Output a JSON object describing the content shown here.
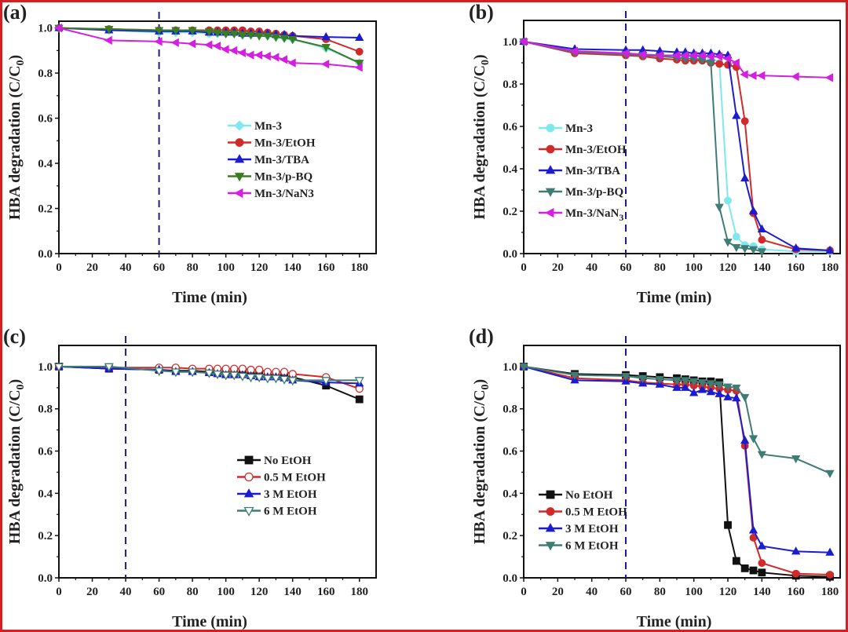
{
  "figure": {
    "border_color": "#d42020"
  },
  "chart_data": [
    {
      "panel": "(a)",
      "type": "line",
      "xlabel": "Time (min)",
      "ylabel": "HBA degradation (C/C0)",
      "ylabel_parts": [
        "HBA degradation (C/C",
        "0",
        ")"
      ],
      "xlim": [
        0,
        190
      ],
      "ylim": [
        0,
        1.03
      ],
      "xticks": [
        0,
        20,
        40,
        60,
        80,
        100,
        120,
        140,
        160,
        180
      ],
      "xtick_labels": [
        "0",
        "20",
        "40",
        "60",
        "80",
        "100",
        "120",
        "140",
        "160",
        "180"
      ],
      "yticks": [
        0.0,
        0.2,
        0.4,
        0.6,
        0.8,
        1.0
      ],
      "ytick_labels": [
        "0.0",
        "0.2",
        "0.4",
        "0.6",
        "0.8",
        "1.0"
      ],
      "vline_x": 60,
      "legend_position": "center-right",
      "series": [
        {
          "name": "Mn-3",
          "label": "Mn-3",
          "color": "#7fe8ee",
          "marker": "diamond",
          "x": [
            0,
            30,
            60,
            70,
            80,
            90,
            95,
            100,
            105,
            110,
            115,
            120,
            125,
            130,
            135,
            140,
            160,
            180
          ],
          "y": [
            1.0,
            0.99,
            0.98,
            0.98,
            0.98,
            0.975,
            0.975,
            0.975,
            0.975,
            0.97,
            0.97,
            0.97,
            0.965,
            0.96,
            0.955,
            0.95,
            0.91,
            0.845
          ]
        },
        {
          "name": "Mn-3/EtOH",
          "label": "Mn-3/EtOH",
          "color": "#d12a2a",
          "marker": "circle",
          "x": [
            0,
            30,
            60,
            70,
            80,
            90,
            95,
            100,
            105,
            110,
            115,
            120,
            125,
            130,
            135,
            140,
            160,
            180
          ],
          "y": [
            1.0,
            0.995,
            0.99,
            0.99,
            0.99,
            0.99,
            0.99,
            0.99,
            0.99,
            0.99,
            0.985,
            0.985,
            0.98,
            0.975,
            0.97,
            0.965,
            0.95,
            0.895
          ]
        },
        {
          "name": "Mn-3/TBA",
          "label": "Mn-3/TBA",
          "color": "#1c1ccf",
          "marker": "triangle-up",
          "x": [
            0,
            30,
            60,
            70,
            80,
            90,
            95,
            100,
            105,
            110,
            115,
            120,
            125,
            130,
            135,
            140,
            160,
            180
          ],
          "y": [
            1.0,
            0.99,
            0.985,
            0.985,
            0.985,
            0.98,
            0.98,
            0.98,
            0.98,
            0.975,
            0.975,
            0.975,
            0.975,
            0.97,
            0.97,
            0.965,
            0.96,
            0.957
          ]
        },
        {
          "name": "Mn-3/p-BQ",
          "label": "Mn-3/p-BQ",
          "color": "#3b7d23",
          "marker": "triangle-down",
          "x": [
            0,
            30,
            60,
            70,
            80,
            90,
            95,
            100,
            105,
            110,
            115,
            120,
            125,
            130,
            135,
            140,
            160,
            180
          ],
          "y": [
            1.0,
            0.995,
            0.99,
            0.99,
            0.99,
            0.985,
            0.98,
            0.975,
            0.975,
            0.97,
            0.97,
            0.965,
            0.965,
            0.96,
            0.955,
            0.95,
            0.915,
            0.845
          ]
        },
        {
          "name": "Mn-3/NaN3",
          "label": "Mn-3/NaN3",
          "color": "#d51fe0",
          "marker": "triangle-left",
          "x": [
            0,
            30,
            60,
            70,
            80,
            90,
            95,
            100,
            105,
            110,
            115,
            120,
            125,
            130,
            135,
            140,
            160,
            180
          ],
          "y": [
            1.0,
            0.945,
            0.94,
            0.935,
            0.93,
            0.925,
            0.92,
            0.905,
            0.9,
            0.89,
            0.88,
            0.88,
            0.875,
            0.87,
            0.86,
            0.845,
            0.84,
            0.825
          ]
        }
      ]
    },
    {
      "panel": "(b)",
      "type": "line",
      "xlabel": "Time (min)",
      "ylabel": "HBA degradation (C/C0)",
      "ylabel_parts": [
        "HBA degradation (C/C",
        "0",
        ")"
      ],
      "xlim": [
        0,
        186
      ],
      "ylim": [
        0,
        1.1
      ],
      "xticks": [
        0,
        20,
        40,
        60,
        80,
        100,
        120,
        140,
        160,
        180
      ],
      "xtick_labels": [
        "0",
        "20",
        "40",
        "60",
        "80",
        "100",
        "120",
        "140",
        "160",
        "180"
      ],
      "yticks": [
        0.0,
        0.2,
        0.4,
        0.6,
        0.8,
        1.0
      ],
      "ytick_labels": [
        "0.0",
        "0.2",
        "0.4",
        "0.6",
        "0.8",
        "1.0"
      ],
      "vline_x": 60,
      "legend_position": "center-left",
      "series": [
        {
          "name": "Mn-3",
          "label": "Mn-3",
          "label_sub": "",
          "color": "#7fe8ee",
          "marker": "circle",
          "x": [
            0,
            30,
            60,
            70,
            80,
            90,
            95,
            100,
            105,
            110,
            115,
            120,
            125,
            130,
            135,
            140,
            160,
            180
          ],
          "y": [
            1.0,
            0.955,
            0.945,
            0.94,
            0.935,
            0.93,
            0.93,
            0.93,
            0.93,
            0.925,
            0.9,
            0.25,
            0.08,
            0.04,
            0.035,
            0.02,
            0.01,
            0.01
          ]
        },
        {
          "name": "Mn-3/EtOH",
          "label": "Mn-3/EtOH",
          "label_sub": "",
          "color": "#d12a2a",
          "marker": "circle",
          "x": [
            0,
            30,
            60,
            70,
            80,
            90,
            95,
            100,
            105,
            110,
            115,
            120,
            125,
            130,
            135,
            140,
            160,
            180
          ],
          "y": [
            1.0,
            0.945,
            0.935,
            0.93,
            0.92,
            0.915,
            0.91,
            0.91,
            0.91,
            0.9,
            0.895,
            0.89,
            0.88,
            0.625,
            0.19,
            0.065,
            0.02,
            0.015
          ]
        },
        {
          "name": "Mn-3/TBA",
          "label": "Mn-3/TBA",
          "label_sub": "",
          "color": "#1c1ccf",
          "marker": "triangle-up",
          "x": [
            0,
            30,
            60,
            70,
            80,
            90,
            95,
            100,
            105,
            110,
            115,
            120,
            125,
            130,
            135,
            140,
            160,
            180
          ],
          "y": [
            1.0,
            0.965,
            0.96,
            0.96,
            0.955,
            0.95,
            0.95,
            0.945,
            0.945,
            0.945,
            0.94,
            0.935,
            0.65,
            0.355,
            0.2,
            0.115,
            0.025,
            0.015
          ]
        },
        {
          "name": "Mn-3/p-BQ",
          "label": "Mn-3/p-BQ",
          "label_sub": "",
          "color": "#3f7c74",
          "marker": "triangle-down",
          "x": [
            0,
            30,
            60,
            70,
            80,
            90,
            95,
            100,
            105,
            110,
            115,
            120,
            125,
            130,
            135,
            140
          ],
          "y": [
            1.0,
            0.95,
            0.94,
            0.935,
            0.93,
            0.925,
            0.92,
            0.92,
            0.915,
            0.9,
            0.22,
            0.055,
            0.03,
            0.025,
            0.02,
            0.01
          ]
        },
        {
          "name": "Mn-3/NaN3",
          "label": "Mn-3/NaN",
          "label_sub": "3",
          "color": "#d51fe0",
          "marker": "triangle-left",
          "x": [
            0,
            30,
            60,
            70,
            80,
            90,
            95,
            100,
            105,
            110,
            115,
            120,
            125,
            130,
            135,
            140,
            160,
            180
          ],
          "y": [
            1.0,
            0.955,
            0.945,
            0.94,
            0.935,
            0.935,
            0.935,
            0.935,
            0.935,
            0.93,
            0.93,
            0.92,
            0.9,
            0.845,
            0.84,
            0.84,
            0.835,
            0.83
          ]
        }
      ]
    },
    {
      "panel": "(c)",
      "type": "line",
      "xlabel": "Time (min)",
      "ylabel": "HBA degradation (C/C0)",
      "ylabel_parts": [
        "HBA degradation (C/C",
        "0",
        ")"
      ],
      "xlim": [
        0,
        190
      ],
      "ylim": [
        0,
        1.1
      ],
      "xticks": [
        0,
        20,
        40,
        60,
        80,
        100,
        120,
        140,
        160,
        180
      ],
      "xtick_labels": [
        "0",
        "20",
        "40",
        "60",
        "80",
        "100",
        "120",
        "140",
        "160",
        "180"
      ],
      "yticks": [
        0.0,
        0.2,
        0.4,
        0.6,
        0.8,
        1.0
      ],
      "ytick_labels": [
        "0.0",
        "0.2",
        "0.4",
        "0.6",
        "0.8",
        "1.0"
      ],
      "vline_x": 40,
      "legend_position": "center-right",
      "series": [
        {
          "name": "No EtOH",
          "label": "No EtOH",
          "color": "#111111",
          "marker": "square",
          "fill": "solid",
          "x": [
            0,
            30,
            60,
            70,
            80,
            90,
            95,
            100,
            105,
            110,
            115,
            120,
            125,
            130,
            135,
            140,
            160,
            180
          ],
          "y": [
            1.0,
            0.99,
            0.985,
            0.98,
            0.98,
            0.975,
            0.975,
            0.97,
            0.97,
            0.97,
            0.965,
            0.965,
            0.96,
            0.96,
            0.955,
            0.95,
            0.91,
            0.845
          ]
        },
        {
          "name": "0.5 M EtOH",
          "label": "0.5 M EtOH",
          "color": "#d12a2a",
          "marker": "circle",
          "fill": "open",
          "x": [
            0,
            30,
            60,
            70,
            80,
            90,
            95,
            100,
            105,
            110,
            115,
            120,
            125,
            130,
            135,
            140,
            160,
            180
          ],
          "y": [
            1.0,
            0.995,
            0.995,
            0.995,
            0.99,
            0.99,
            0.99,
            0.99,
            0.99,
            0.99,
            0.985,
            0.985,
            0.975,
            0.975,
            0.975,
            0.965,
            0.95,
            0.895
          ]
        },
        {
          "name": "3 M EtOH",
          "label": "3 M EtOH",
          "color": "#1c1ccf",
          "marker": "triangle-up",
          "fill": "solid",
          "x": [
            0,
            30,
            60,
            70,
            80,
            90,
            95,
            100,
            105,
            110,
            115,
            120,
            125,
            130,
            135,
            140,
            160,
            180
          ],
          "y": [
            1.0,
            0.99,
            0.985,
            0.975,
            0.975,
            0.97,
            0.965,
            0.96,
            0.96,
            0.96,
            0.955,
            0.95,
            0.95,
            0.95,
            0.945,
            0.935,
            0.925,
            0.92
          ]
        },
        {
          "name": "6 M EtOH",
          "label": "6 M EtOH",
          "color": "#3f7c74",
          "marker": "triangle-down",
          "fill": "open",
          "x": [
            0,
            30,
            60,
            70,
            80,
            90,
            95,
            100,
            105,
            110,
            115,
            120,
            125,
            130,
            135,
            140,
            160,
            180
          ],
          "y": [
            1.0,
            1.0,
            0.98,
            0.975,
            0.975,
            0.97,
            0.965,
            0.96,
            0.96,
            0.955,
            0.95,
            0.95,
            0.945,
            0.945,
            0.94,
            0.935,
            0.935,
            0.935
          ]
        }
      ]
    },
    {
      "panel": "(d)",
      "type": "line",
      "xlabel": "Time (min)",
      "ylabel": "HBA degradation (C/C0)",
      "ylabel_parts": [
        "HBA degradation (C/C",
        "0",
        ")"
      ],
      "xlim": [
        0,
        186
      ],
      "ylim": [
        0,
        1.1
      ],
      "xticks": [
        0,
        20,
        40,
        60,
        80,
        100,
        120,
        140,
        160,
        180
      ],
      "xtick_labels": [
        "0",
        "20",
        "40",
        "60",
        "80",
        "100",
        "120",
        "140",
        "160",
        "180"
      ],
      "yticks": [
        0.0,
        0.2,
        0.4,
        0.6,
        0.8,
        1.0
      ],
      "ytick_labels": [
        "0.0",
        "0.2",
        "0.4",
        "0.6",
        "0.8",
        "1.0"
      ],
      "vline_x": 60,
      "legend_position": "center-left",
      "series": [
        {
          "name": "No EtOH",
          "label": "No EtOH",
          "color": "#111111",
          "marker": "square",
          "fill": "solid",
          "x": [
            0,
            30,
            60,
            70,
            80,
            90,
            95,
            100,
            105,
            110,
            115,
            120,
            125,
            130,
            135,
            140,
            160,
            180
          ],
          "y": [
            1.0,
            0.965,
            0.96,
            0.955,
            0.95,
            0.945,
            0.94,
            0.935,
            0.93,
            0.93,
            0.925,
            0.25,
            0.08,
            0.045,
            0.035,
            0.025,
            0.01,
            0.005
          ]
        },
        {
          "name": "0.5 M EtOH",
          "label": "0.5 M EtOH",
          "color": "#d12a2a",
          "marker": "circle",
          "fill": "solid",
          "x": [
            0,
            30,
            60,
            70,
            80,
            90,
            95,
            100,
            105,
            110,
            115,
            120,
            125,
            130,
            135,
            140,
            160,
            180
          ],
          "y": [
            1.0,
            0.945,
            0.935,
            0.925,
            0.92,
            0.915,
            0.915,
            0.91,
            0.905,
            0.9,
            0.895,
            0.89,
            0.885,
            0.625,
            0.19,
            0.07,
            0.02,
            0.015
          ]
        },
        {
          "name": "3 M EtOH",
          "label": "3 M EtOH",
          "color": "#1c1ccf",
          "marker": "triangle-up",
          "fill": "solid",
          "x": [
            0,
            30,
            60,
            70,
            80,
            90,
            95,
            100,
            105,
            110,
            115,
            120,
            125,
            130,
            135,
            140,
            160,
            180
          ],
          "y": [
            1.0,
            0.935,
            0.93,
            0.92,
            0.915,
            0.9,
            0.9,
            0.875,
            0.89,
            0.88,
            0.87,
            0.855,
            0.85,
            0.65,
            0.225,
            0.15,
            0.125,
            0.12
          ]
        },
        {
          "name": "6 M EtOH",
          "label": "6 M EtOH",
          "color": "#3f7c74",
          "marker": "triangle-down",
          "fill": "solid",
          "x": [
            0,
            30,
            60,
            70,
            80,
            90,
            95,
            100,
            105,
            110,
            115,
            120,
            125,
            130,
            135,
            140,
            160,
            180
          ],
          "y": [
            1.0,
            0.96,
            0.955,
            0.945,
            0.94,
            0.935,
            0.935,
            0.93,
            0.925,
            0.92,
            0.915,
            0.905,
            0.9,
            0.855,
            0.66,
            0.585,
            0.565,
            0.495
          ]
        }
      ]
    }
  ]
}
